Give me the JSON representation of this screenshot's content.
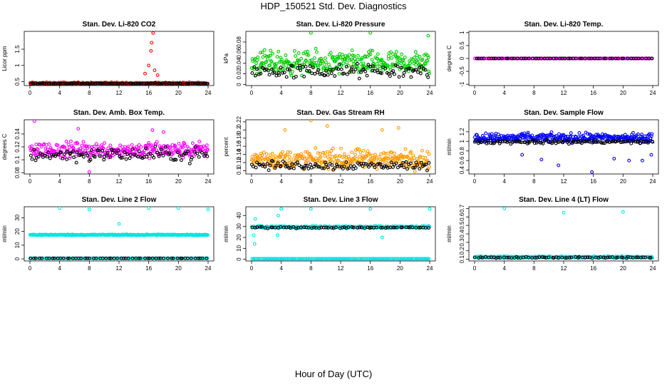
{
  "page": {
    "title": "HDP_150521  Std. Dev. Diagnostics",
    "x_axis_label": "Hour of Day (UTC)"
  },
  "chart_data": [
    {
      "type": "scatter",
      "title": "Stan. Dev. Li-820 CO2",
      "ylabel": "Licor ppm",
      "xlim": [
        0,
        24
      ],
      "ylim": [
        0.38,
        2.05
      ],
      "xticks": [
        0,
        4,
        8,
        12,
        16,
        20,
        24
      ],
      "yticks": [
        0.5,
        1.0,
        1.5
      ],
      "color": "#ff0000",
      "series": [
        {
          "name": "colored",
          "color": "#ff0000",
          "pattern": "band",
          "center": 0.45,
          "spread": 0.04
        },
        {
          "name": "black",
          "color": "#000000",
          "pattern": "band",
          "center": 0.44,
          "spread": 0.03
        }
      ],
      "spikes": [
        {
          "x": 16.4,
          "y": 1.7
        },
        {
          "x": 16.6,
          "y": 2.0
        },
        {
          "x": 16.3,
          "y": 1.45
        },
        {
          "x": 16.0,
          "y": 1.0
        },
        {
          "x": 15.5,
          "y": 0.75
        },
        {
          "x": 17.2,
          "y": 0.7
        },
        {
          "x": 16.8,
          "y": 0.85
        }
      ]
    },
    {
      "type": "scatter",
      "title": "Stan. Dev. Li-820 Pressure",
      "ylabel": "kPa",
      "xlim": [
        0,
        24
      ],
      "ylim": [
        -0.002,
        0.1
      ],
      "xticks": [
        0,
        4,
        8,
        12,
        16,
        20,
        24
      ],
      "yticks": [
        0.0,
        0.02,
        0.04,
        0.06,
        0.08
      ],
      "color": "#00cc00",
      "series": [
        {
          "name": "colored",
          "color": "#00cc00",
          "pattern": "band",
          "center": 0.04,
          "spread": 0.032
        },
        {
          "name": "black",
          "color": "#000000",
          "pattern": "band",
          "center": 0.025,
          "spread": 0.02
        }
      ],
      "spikes": [
        {
          "x": 8.0,
          "y": 0.097
        },
        {
          "x": 16.0,
          "y": 0.097
        },
        {
          "x": 23.8,
          "y": 0.092
        },
        {
          "x": 1.2,
          "y": 0.06
        }
      ]
    },
    {
      "type": "scatter",
      "title": "Stan. Dev. Li-820 Temp.",
      "ylabel": "degrees C",
      "xlim": [
        0,
        24
      ],
      "ylim": [
        -1.05,
        1.05
      ],
      "xticks": [
        0,
        4,
        8,
        12,
        16,
        20,
        24
      ],
      "yticks": [
        -1.0,
        -0.5,
        0.0,
        0.5,
        1.0
      ],
      "color": "#ff00ff",
      "series": [
        {
          "name": "colored",
          "color": "#ff00ff",
          "pattern": "flat",
          "center": 0.0,
          "spread": 0
        },
        {
          "name": "black",
          "color": "#000000",
          "pattern": "flat",
          "center": 0.0,
          "spread": 0
        }
      ],
      "spikes": []
    },
    {
      "type": "scatter",
      "title": "Stan. Dev. Amb. Box Temp.",
      "ylabel": "degrees C",
      "xlim": [
        0,
        24
      ],
      "ylim": [
        0.078,
        0.162
      ],
      "xticks": [
        0,
        4,
        8,
        12,
        16,
        20,
        24
      ],
      "yticks": [
        0.08,
        0.1,
        0.12,
        0.14
      ],
      "color": "#ff00ff",
      "series": [
        {
          "name": "colored",
          "color": "#ff00ff",
          "pattern": "band",
          "center": 0.115,
          "spread": 0.018
        },
        {
          "name": "black",
          "color": "#000000",
          "pattern": "band",
          "center": 0.108,
          "spread": 0.016
        }
      ],
      "spikes": [
        {
          "x": 0.6,
          "y": 0.16
        },
        {
          "x": 8.0,
          "y": 0.081
        },
        {
          "x": 6.5,
          "y": 0.148
        },
        {
          "x": 16.5,
          "y": 0.146
        },
        {
          "x": 18.0,
          "y": 0.143
        }
      ]
    },
    {
      "type": "scatter",
      "title": "Stan. Dev. Gas Stream RH",
      "ylabel": "percent",
      "xlim": [
        0,
        24
      ],
      "ylim": [
        0.092,
        0.225
      ],
      "xticks": [
        0,
        4,
        8,
        12,
        16,
        20,
        24
      ],
      "yticks": [
        0.1,
        0.12,
        0.14,
        0.16,
        0.18,
        0.2,
        0.22
      ],
      "color": "#ff9900",
      "series": [
        {
          "name": "colored",
          "color": "#ff9900",
          "pattern": "band",
          "center": 0.128,
          "spread": 0.034
        },
        {
          "name": "black",
          "color": "#000000",
          "pattern": "band",
          "center": 0.113,
          "spread": 0.016
        }
      ],
      "spikes": [
        {
          "x": 8.0,
          "y": 0.223
        },
        {
          "x": 10.2,
          "y": 0.21
        },
        {
          "x": 4.5,
          "y": 0.2
        },
        {
          "x": 17.6,
          "y": 0.2
        },
        {
          "x": 19.8,
          "y": 0.205
        }
      ]
    },
    {
      "type": "scatter",
      "title": "Stan. Dev. Sample Flow",
      "ylabel": "ml/min",
      "xlim": [
        0,
        24
      ],
      "ylim": [
        0.32,
        1.45
      ],
      "xticks": [
        0,
        4,
        8,
        12,
        16,
        20,
        24
      ],
      "yticks": [
        0.4,
        0.6,
        0.8,
        1.0,
        1.2
      ],
      "color": "#0000ff",
      "series": [
        {
          "name": "colored",
          "color": "#0000ff",
          "pattern": "band",
          "center": 1.07,
          "spread": 0.14
        },
        {
          "name": "black",
          "color": "#000000",
          "pattern": "band",
          "center": 0.99,
          "spread": 0.06
        }
      ],
      "spikes": [
        {
          "x": 15.8,
          "y": 0.36
        },
        {
          "x": 11.3,
          "y": 0.5
        },
        {
          "x": 6.4,
          "y": 0.72
        },
        {
          "x": 9.0,
          "y": 0.62
        },
        {
          "x": 20.8,
          "y": 0.6
        },
        {
          "x": 22.6,
          "y": 0.6
        },
        {
          "x": 23.8,
          "y": 0.72
        },
        {
          "x": 18.8,
          "y": 0.64
        }
      ]
    },
    {
      "type": "scatter",
      "title": "Stan. Dev. Line 2 Flow",
      "ylabel": "ml/min",
      "xlim": [
        0,
        24
      ],
      "ylim": [
        -1.5,
        38
      ],
      "xticks": [
        0,
        4,
        8,
        12,
        16,
        20,
        24
      ],
      "yticks": [
        0,
        10,
        20,
        30
      ],
      "color": "#00e5e5",
      "series": [
        {
          "name": "colored-high",
          "color": "#00e5e5",
          "pattern": "band",
          "center": 17.5,
          "spread": 0.6
        },
        {
          "name": "colored-low",
          "color": "#00e5e5",
          "pattern": "flat",
          "center": 0.4,
          "spread": 0
        },
        {
          "name": "black",
          "color": "#000000",
          "pattern": "flat",
          "center": 0.4,
          "spread": 0
        }
      ],
      "spikes": [
        {
          "x": 4.0,
          "y": 37
        },
        {
          "x": 8.0,
          "y": 36
        },
        {
          "x": 16.0,
          "y": 37
        },
        {
          "x": 20.0,
          "y": 37
        },
        {
          "x": 24.0,
          "y": 36
        },
        {
          "x": 12.0,
          "y": 25.5
        }
      ]
    },
    {
      "type": "scatter",
      "title": "Stan. Dev. Line 3 Flow",
      "ylabel": "ml/min",
      "xlim": [
        0,
        24
      ],
      "ylim": [
        -1.5,
        48
      ],
      "xticks": [
        0,
        4,
        8,
        12,
        16,
        20,
        24
      ],
      "yticks": [
        0,
        10,
        20,
        30,
        40
      ],
      "color": "#00e5e5",
      "series": [
        {
          "name": "colored-high",
          "color": "#00e5e5",
          "pattern": "band",
          "center": 29.5,
          "spread": 1.5
        },
        {
          "name": "colored-low",
          "color": "#00e5e5",
          "pattern": "flat",
          "center": 0.5,
          "spread": 0
        },
        {
          "name": "black",
          "color": "#000000",
          "pattern": "sparse",
          "center": 29.0,
          "spread": 1.0
        }
      ],
      "spikes": [
        {
          "x": 4.0,
          "y": 46
        },
        {
          "x": 8.0,
          "y": 46
        },
        {
          "x": 16.0,
          "y": 46
        },
        {
          "x": 24.0,
          "y": 46
        },
        {
          "x": 0.3,
          "y": 22
        },
        {
          "x": 0.4,
          "y": 14
        },
        {
          "x": 0.5,
          "y": 37
        },
        {
          "x": 3.6,
          "y": 40
        },
        {
          "x": 17.6,
          "y": 20
        },
        {
          "x": 3.5,
          "y": 22
        }
      ]
    },
    {
      "type": "scatter",
      "title": "Stan. Dev. Line 4 (LT) Flow",
      "ylabel": "ml/min",
      "xlim": [
        0,
        24
      ],
      "ylim": [
        0.08,
        0.72
      ],
      "xticks": [
        0,
        4,
        8,
        12,
        16,
        20,
        24
      ],
      "yticks": [
        0.1,
        0.2,
        0.3,
        0.4,
        0.5,
        0.6,
        0.7
      ],
      "color": "#00e5e5",
      "series": [
        {
          "name": "colored",
          "color": "#00e5e5",
          "pattern": "band",
          "center": 0.125,
          "spread": 0.015
        },
        {
          "name": "black",
          "color": "#000000",
          "pattern": "sparse",
          "center": 0.12,
          "spread": 0.012
        }
      ],
      "spikes": [
        {
          "x": 4.0,
          "y": 0.7
        },
        {
          "x": 12.0,
          "y": 0.65
        },
        {
          "x": 20.0,
          "y": 0.66
        }
      ]
    }
  ]
}
